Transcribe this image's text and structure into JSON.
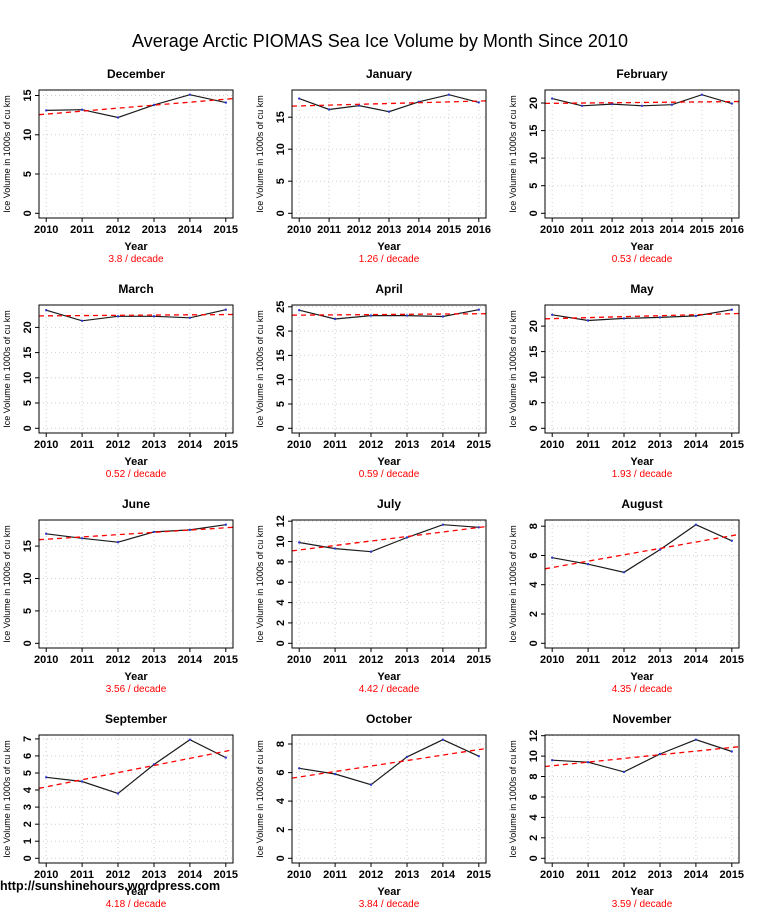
{
  "page": {
    "title": "Average Arctic PIOMAS Sea Ice Volume by Month Since 2010",
    "watermark": "http://sunshinehours.wordpress.com"
  },
  "colors": {
    "line": "#1b1b1b",
    "point": "#2a35c9",
    "trend": "#ff0000",
    "grid": "#cfcfcf",
    "axis": "#000000",
    "trend_text": "#ff0000"
  },
  "chart_data": [
    {
      "type": "line",
      "title": "December",
      "xlabel": "Year",
      "ylabel": "Ice Volume in 1000s of cu km",
      "x": [
        2010,
        2011,
        2012,
        2013,
        2014,
        2015
      ],
      "values": [
        13.1,
        13.2,
        12.2,
        13.8,
        15.1,
        14.1
      ],
      "yticks": [
        0,
        5,
        10,
        15
      ],
      "ylim": [
        0,
        15.1
      ],
      "trend_label": "3.8 / decade",
      "trend_per_decade": 3.8,
      "legend": "none",
      "grid": true
    },
    {
      "type": "line",
      "title": "January",
      "xlabel": "Year",
      "ylabel": "Ice Volume in 1000s of cu km",
      "x": [
        2010,
        2011,
        2012,
        2013,
        2014,
        2015,
        2016
      ],
      "values": [
        17.9,
        16.2,
        16.8,
        15.85,
        17.4,
        18.5,
        17.3
      ],
      "yticks": [
        0,
        5,
        10,
        15
      ],
      "ylim": [
        0,
        18.5
      ],
      "trend_label": "1.26 / decade",
      "trend_per_decade": 1.26,
      "legend": "none",
      "grid": true
    },
    {
      "type": "line",
      "title": "February",
      "xlabel": "Year",
      "ylabel": "Ice Volume in 1000s of cu km",
      "x": [
        2010,
        2011,
        2012,
        2013,
        2014,
        2015,
        2016
      ],
      "values": [
        20.8,
        19.5,
        19.8,
        19.5,
        19.7,
        21.5,
        19.9
      ],
      "yticks": [
        0,
        5,
        10,
        15,
        20
      ],
      "ylim": [
        0,
        21.5
      ],
      "trend_label": "0.53 / decade",
      "trend_per_decade": 0.53,
      "legend": "none",
      "grid": true
    },
    {
      "type": "line",
      "title": "March",
      "xlabel": "Year",
      "ylabel": "Ice Volume in 1000s of cu km",
      "x": [
        2010,
        2011,
        2012,
        2013,
        2014,
        2015
      ],
      "values": [
        23.4,
        21.3,
        22.2,
        22.2,
        21.9,
        23.5
      ],
      "yticks": [
        0,
        5,
        10,
        15,
        20
      ],
      "ylim": [
        0,
        23.5
      ],
      "trend_label": "0.52 / decade",
      "trend_per_decade": 0.52,
      "legend": "none",
      "grid": true
    },
    {
      "type": "line",
      "title": "April",
      "xlabel": "Year",
      "ylabel": "Ice Volume in 1000s of cu km",
      "x": [
        2010,
        2011,
        2012,
        2013,
        2014,
        2015
      ],
      "values": [
        24.3,
        22.5,
        23.2,
        23.2,
        23.0,
        24.4
      ],
      "yticks": [
        0,
        5,
        10,
        15,
        20,
        25
      ],
      "ylim": [
        0,
        24.4
      ],
      "trend_label": "0.59 / decade",
      "trend_per_decade": 0.59,
      "legend": "none",
      "grid": true
    },
    {
      "type": "line",
      "title": "May",
      "xlabel": "Year",
      "ylabel": "Ice Volume in 1000s of cu km",
      "x": [
        2010,
        2011,
        2012,
        2013,
        2014,
        2015
      ],
      "values": [
        22.2,
        21.1,
        21.5,
        21.7,
        22.0,
        23.2
      ],
      "yticks": [
        0,
        5,
        10,
        15,
        20
      ],
      "ylim": [
        0,
        23.2
      ],
      "trend_label": "1.93 / decade",
      "trend_per_decade": 1.93,
      "legend": "none",
      "grid": true
    },
    {
      "type": "line",
      "title": "June",
      "xlabel": "Year",
      "ylabel": "Ice Volume in 1000s of cu km",
      "x": [
        2010,
        2011,
        2012,
        2013,
        2014,
        2015
      ],
      "values": [
        16.9,
        16.2,
        15.6,
        17.2,
        17.5,
        18.3
      ],
      "yticks": [
        0,
        5,
        10,
        15
      ],
      "ylim": [
        0,
        18.3
      ],
      "trend_label": "3.56 / decade",
      "trend_per_decade": 3.56,
      "legend": "none",
      "grid": true
    },
    {
      "type": "line",
      "title": "July",
      "xlabel": "Year",
      "ylabel": "Ice Volume in 1000s of cu km",
      "x": [
        2010,
        2011,
        2012,
        2013,
        2014,
        2015
      ],
      "values": [
        9.9,
        9.3,
        9.0,
        10.4,
        11.65,
        11.4
      ],
      "yticks": [
        0,
        2,
        4,
        6,
        8,
        10,
        12
      ],
      "ylim": [
        0,
        11.65
      ],
      "trend_label": "4.42 / decade",
      "trend_per_decade": 4.42,
      "legend": "none",
      "grid": true
    },
    {
      "type": "line",
      "title": "August",
      "xlabel": "Year",
      "ylabel": "Ice Volume in 1000s of cu km",
      "x": [
        2010,
        2011,
        2012,
        2013,
        2014,
        2015
      ],
      "values": [
        5.85,
        5.4,
        4.85,
        6.4,
        8.1,
        7.0
      ],
      "yticks": [
        0,
        2,
        4,
        6,
        8
      ],
      "ylim": [
        0,
        8.1
      ],
      "trend_label": "4.35 / decade",
      "trend_per_decade": 4.35,
      "legend": "none",
      "grid": true
    },
    {
      "type": "line",
      "title": "September",
      "xlabel": "Year",
      "ylabel": "Ice Volume in 1000s of cu km",
      "x": [
        2010,
        2011,
        2012,
        2013,
        2014,
        2015
      ],
      "values": [
        4.75,
        4.5,
        3.8,
        5.5,
        6.95,
        5.9
      ],
      "yticks": [
        0,
        1,
        2,
        3,
        4,
        5,
        6,
        7
      ],
      "ylim": [
        0,
        6.95
      ],
      "trend_label": "4.18 / decade",
      "trend_per_decade": 4.18,
      "legend": "none",
      "grid": true
    },
    {
      "type": "line",
      "title": "October",
      "xlabel": "Year",
      "ylabel": "Ice Volume in 1000s of cu km",
      "x": [
        2010,
        2011,
        2012,
        2013,
        2014,
        2015
      ],
      "values": [
        6.3,
        5.9,
        5.15,
        7.1,
        8.3,
        7.15
      ],
      "yticks": [
        0,
        2,
        4,
        6,
        8
      ],
      "ylim": [
        0,
        8.3
      ],
      "trend_label": "3.84 / decade",
      "trend_per_decade": 3.84,
      "legend": "none",
      "grid": true
    },
    {
      "type": "line",
      "title": "November",
      "xlabel": "Year",
      "ylabel": "Ice Volume in 1000s of cu km",
      "x": [
        2010,
        2011,
        2012,
        2013,
        2014,
        2015
      ],
      "values": [
        9.6,
        9.4,
        8.45,
        10.2,
        11.6,
        10.45
      ],
      "yticks": [
        0,
        2,
        4,
        6,
        8,
        10,
        12
      ],
      "ylim": [
        0,
        11.6
      ],
      "trend_label": "3.59 / decade",
      "trend_per_decade": 3.59,
      "legend": "none",
      "grid": true
    }
  ]
}
